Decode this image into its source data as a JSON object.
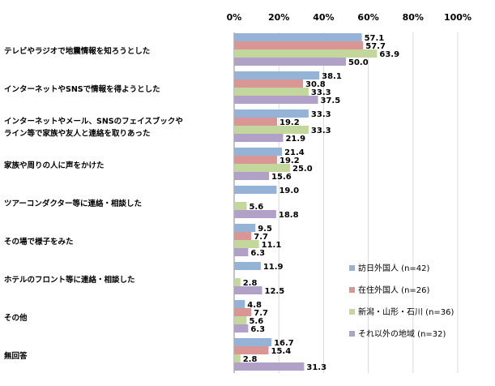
{
  "chart_data": {
    "type": "bar",
    "orientation": "horizontal",
    "xlim": [
      0,
      100
    ],
    "x_ticks": [
      "0%",
      "20%",
      "40%",
      "60%",
      "80%",
      "100%"
    ],
    "grid": true,
    "legend_position": "bottom-right",
    "categories": [
      "テレビやラジオで地震情報を知ろうとした",
      "インターネットやSNSで情報を得ようとした",
      "インターネットやメール、SNSのフェイスブックや|ライン等で家族や友人と連絡を取りあった",
      "家族や周りの人に声をかけた",
      "ツアーコンダクター等に連絡・相談した",
      "その場で様子をみた",
      "ホテルのフロント等に連絡・相談した",
      "その他",
      "無回答"
    ],
    "series": [
      {
        "name": "訪日外国人 (n=42)",
        "color": "#95b3d7",
        "values": [
          57.1,
          38.1,
          33.3,
          21.4,
          19.0,
          9.5,
          11.9,
          4.8,
          16.7
        ]
      },
      {
        "name": "在住外国人 (n=26)",
        "color": "#da9694",
        "values": [
          57.7,
          30.8,
          19.2,
          19.2,
          null,
          7.7,
          null,
          7.7,
          15.4
        ]
      },
      {
        "name": "新潟・山形・石川 (n=36)",
        "color": "#c3d69b",
        "values": [
          63.9,
          33.3,
          33.3,
          25.0,
          5.6,
          11.1,
          2.8,
          5.6,
          2.8
        ]
      },
      {
        "name": "それ以外の地域 (n=32)",
        "color": "#b1a0c7",
        "values": [
          50.0,
          37.5,
          21.9,
          15.6,
          18.8,
          6.3,
          12.5,
          6.3,
          31.3
        ]
      }
    ]
  }
}
